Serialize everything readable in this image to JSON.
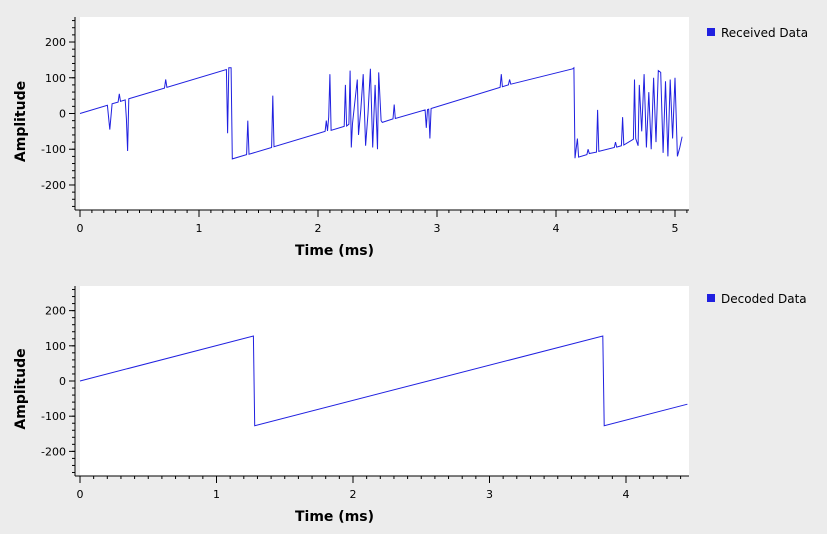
{
  "chart_data": [
    {
      "type": "line",
      "xlabel": "Time (ms)",
      "ylabel": "Amplitude",
      "xlim": [
        0,
        5.12
      ],
      "ylim": [
        -270,
        270
      ],
      "xticks": [
        0,
        1,
        2,
        3,
        4,
        5
      ],
      "yticks": [
        200,
        100,
        0,
        -100,
        -200
      ],
      "legend": "top-right",
      "series": [
        {
          "name": "Received Data",
          "color": "#2020e0",
          "kind": "sawtooth-noisy",
          "slope_per_ms": 100,
          "start": 0,
          "wraps_ms": [
            1.27,
            4.15
          ],
          "values": [
            [
              0,
              0
            ],
            [
              0.23,
              23
            ],
            [
              0.25,
              -45
            ],
            [
              0.27,
              27
            ],
            [
              0.32,
              32
            ],
            [
              0.33,
              55
            ],
            [
              0.34,
              34
            ],
            [
              0.38,
              38
            ],
            [
              0.39,
              -15
            ],
            [
              0.4,
              -105
            ],
            [
              0.41,
              41
            ],
            [
              0.71,
              71
            ],
            [
              0.72,
              95
            ],
            [
              0.73,
              73
            ],
            [
              1.23,
              123
            ],
            [
              1.24,
              -55
            ],
            [
              1.25,
              128
            ],
            [
              1.27,
              128
            ],
            [
              1.28,
              -127
            ],
            [
              1.4,
              -115
            ],
            [
              1.41,
              -20
            ],
            [
              1.42,
              -114
            ],
            [
              1.61,
              -95
            ],
            [
              1.62,
              50
            ],
            [
              1.63,
              -93
            ],
            [
              2.06,
              -50
            ],
            [
              2.07,
              -20
            ],
            [
              2.08,
              -49
            ],
            [
              2.09,
              -10
            ],
            [
              2.1,
              110
            ],
            [
              2.11,
              -47
            ],
            [
              2.22,
              -36
            ],
            [
              2.23,
              80
            ],
            [
              2.24,
              -35
            ],
            [
              2.26,
              -30
            ],
            [
              2.27,
              120
            ],
            [
              2.28,
              -95
            ],
            [
              2.29,
              -28
            ],
            [
              2.33,
              95
            ],
            [
              2.34,
              -60
            ],
            [
              2.36,
              10
            ],
            [
              2.38,
              110
            ],
            [
              2.4,
              -90
            ],
            [
              2.42,
              0
            ],
            [
              2.44,
              125
            ],
            [
              2.46,
              -95
            ],
            [
              2.48,
              80
            ],
            [
              2.5,
              -100
            ],
            [
              2.51,
              115
            ],
            [
              2.53,
              -20
            ],
            [
              2.54,
              -25
            ],
            [
              2.63,
              -15
            ],
            [
              2.64,
              25
            ],
            [
              2.65,
              -14
            ],
            [
              2.9,
              10
            ],
            [
              2.91,
              -40
            ],
            [
              2.92,
              11
            ],
            [
              2.93,
              12
            ],
            [
              2.94,
              -70
            ],
            [
              2.95,
              14
            ],
            [
              3.53,
              73
            ],
            [
              3.54,
              110
            ],
            [
              3.55,
              75
            ],
            [
              3.6,
              80
            ],
            [
              3.61,
              95
            ],
            [
              3.62,
              82
            ],
            [
              4.14,
              125
            ],
            [
              4.15,
              128
            ],
            [
              4.16,
              -125
            ],
            [
              4.18,
              -70
            ],
            [
              4.19,
              -122
            ],
            [
              4.26,
              -115
            ],
            [
              4.27,
              -100
            ],
            [
              4.28,
              -112
            ],
            [
              4.34,
              -108
            ],
            [
              4.35,
              10
            ],
            [
              4.36,
              -106
            ],
            [
              4.49,
              -95
            ],
            [
              4.5,
              -80
            ],
            [
              4.51,
              -94
            ],
            [
              4.55,
              -90
            ],
            [
              4.56,
              -10
            ],
            [
              4.57,
              -88
            ],
            [
              4.65,
              -72
            ],
            [
              4.66,
              95
            ],
            [
              4.67,
              -70
            ],
            [
              4.69,
              -90
            ],
            [
              4.7,
              80
            ],
            [
              4.72,
              -50
            ],
            [
              4.74,
              110
            ],
            [
              4.76,
              -95
            ],
            [
              4.78,
              60
            ],
            [
              4.8,
              -100
            ],
            [
              4.82,
              100
            ],
            [
              4.84,
              -80
            ],
            [
              4.86,
              120
            ],
            [
              4.88,
              115
            ],
            [
              4.9,
              -110
            ],
            [
              4.92,
              90
            ],
            [
              4.94,
              -120
            ],
            [
              4.96,
              95
            ],
            [
              4.98,
              -70
            ],
            [
              5.0,
              100
            ],
            [
              5.02,
              -120
            ],
            [
              5.04,
              -95
            ],
            [
              5.06,
              -65
            ]
          ]
        }
      ]
    },
    {
      "type": "line",
      "xlabel": "Time (ms)",
      "ylabel": "Amplitude",
      "xlim": [
        0,
        4.47
      ],
      "ylim": [
        -270,
        270
      ],
      "xticks": [
        0,
        1,
        2,
        3,
        4
      ],
      "yticks": [
        200,
        100,
        0,
        -100,
        -200
      ],
      "legend": "top-right",
      "series": [
        {
          "name": "Decoded Data",
          "color": "#2020e0",
          "values": [
            [
              0,
              0
            ],
            [
              1.27,
              128
            ],
            [
              1.28,
              -127
            ],
            [
              3.83,
              128
            ],
            [
              3.84,
              -127
            ],
            [
              4.45,
              -66
            ]
          ]
        }
      ]
    }
  ]
}
